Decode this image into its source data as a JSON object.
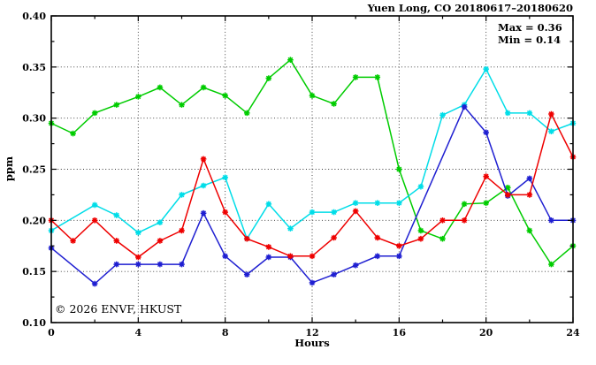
{
  "header": {
    "title": "Yuen Long, CO 20180617–20180620"
  },
  "annotation": {
    "max_label": "Max = 0.36",
    "min_label": "Min = 0.14"
  },
  "watermark": "© 2026 ENVF, HKUST",
  "axes": {
    "ylabel": "ppm",
    "xlabel": "Hours"
  },
  "chart_data": {
    "type": "line",
    "title": "Yuen Long, CO 20180617–20180620",
    "xlabel": "Hours",
    "ylabel": "ppm",
    "xlim": [
      0,
      24
    ],
    "ylim": [
      0.1,
      0.4
    ],
    "x_major_ticks": [
      0,
      4,
      8,
      12,
      16,
      20,
      24
    ],
    "x_minor_step": 2,
    "y_major_ticks": [
      0.1,
      0.15,
      0.2,
      0.25,
      0.3,
      0.35,
      0.4
    ],
    "y_minor_step": 0.025,
    "grid": {
      "x_lines": [
        4,
        8,
        12,
        16,
        20
      ],
      "y_lines": [
        0.15,
        0.2,
        0.25,
        0.3,
        0.35
      ]
    },
    "legend_position": "none",
    "annotations": [
      "Max = 0.36",
      "Min = 0.14"
    ],
    "series": [
      {
        "name": "day1-green",
        "color": "#00cc00",
        "points": [
          [
            0,
            0.295
          ],
          [
            1,
            0.285
          ],
          [
            2,
            0.305
          ],
          [
            3,
            0.313
          ],
          [
            4,
            0.321
          ],
          [
            5,
            0.33
          ],
          [
            6,
            0.313
          ],
          [
            7,
            0.33
          ],
          [
            8,
            0.322
          ],
          [
            9,
            0.305
          ],
          [
            10,
            0.339
          ],
          [
            11,
            0.357
          ],
          [
            12,
            0.322
          ],
          [
            13,
            0.314
          ],
          [
            14,
            0.34
          ],
          [
            15,
            0.34
          ],
          [
            16,
            0.25
          ],
          [
            17,
            0.19
          ],
          [
            18,
            0.182
          ],
          [
            19,
            0.216
          ],
          [
            20,
            0.217
          ],
          [
            21,
            0.232
          ],
          [
            22,
            0.19
          ],
          [
            23,
            0.157
          ],
          [
            24,
            0.175
          ]
        ]
      },
      {
        "name": "day2-cyan",
        "color": "#00dde8",
        "points": [
          [
            0,
            0.19
          ],
          [
            2,
            0.215
          ],
          [
            3,
            0.205
          ],
          [
            4,
            0.188
          ],
          [
            5,
            0.198
          ],
          [
            6,
            0.225
          ],
          [
            7,
            0.234
          ],
          [
            8,
            0.242
          ],
          [
            9,
            0.182
          ],
          [
            10,
            0.216
          ],
          [
            11,
            0.192
          ],
          [
            12,
            0.208
          ],
          [
            13,
            0.208
          ],
          [
            14,
            0.217
          ],
          [
            15,
            0.217
          ],
          [
            16,
            0.217
          ],
          [
            17,
            0.233
          ],
          [
            18,
            0.303
          ],
          [
            19,
            0.313
          ],
          [
            20,
            0.348
          ],
          [
            21,
            0.305
          ],
          [
            22,
            0.305
          ],
          [
            23,
            0.287
          ],
          [
            24,
            0.295
          ]
        ]
      },
      {
        "name": "day3-blue",
        "color": "#1f1fd1",
        "points": [
          [
            0,
            0.173
          ],
          [
            2,
            0.138
          ],
          [
            3,
            0.157
          ],
          [
            4,
            0.157
          ],
          [
            5,
            0.157
          ],
          [
            6,
            0.157
          ],
          [
            7,
            0.207
          ],
          [
            8,
            0.165
          ],
          [
            9,
            0.147
          ],
          [
            10,
            0.164
          ],
          [
            11,
            0.164
          ],
          [
            12,
            0.139
          ],
          [
            13,
            0.147
          ],
          [
            14,
            0.156
          ],
          [
            15,
            0.165
          ],
          [
            16,
            0.165
          ],
          [
            19,
            0.311
          ],
          [
            20,
            0.286
          ],
          [
            21,
            0.224
          ],
          [
            22,
            0.241
          ],
          [
            23,
            0.2
          ],
          [
            24,
            0.2
          ]
        ]
      },
      {
        "name": "day4-red",
        "color": "#ee0000",
        "points": [
          [
            0,
            0.2
          ],
          [
            1,
            0.18
          ],
          [
            2,
            0.2
          ],
          [
            3,
            0.18
          ],
          [
            4,
            0.164
          ],
          [
            5,
            0.18
          ],
          [
            6,
            0.19
          ],
          [
            7,
            0.26
          ],
          [
            8,
            0.208
          ],
          [
            9,
            0.182
          ],
          [
            10,
            0.174
          ],
          [
            11,
            0.165
          ],
          [
            12,
            0.165
          ],
          [
            13,
            0.183
          ],
          [
            14,
            0.209
          ],
          [
            15,
            0.183
          ],
          [
            16,
            0.175
          ],
          [
            17,
            0.182
          ],
          [
            18,
            0.2
          ],
          [
            19,
            0.2
          ],
          [
            20,
            0.243
          ],
          [
            21,
            0.225
          ],
          [
            22,
            0.225
          ],
          [
            23,
            0.304
          ],
          [
            24,
            0.262
          ]
        ]
      }
    ]
  }
}
